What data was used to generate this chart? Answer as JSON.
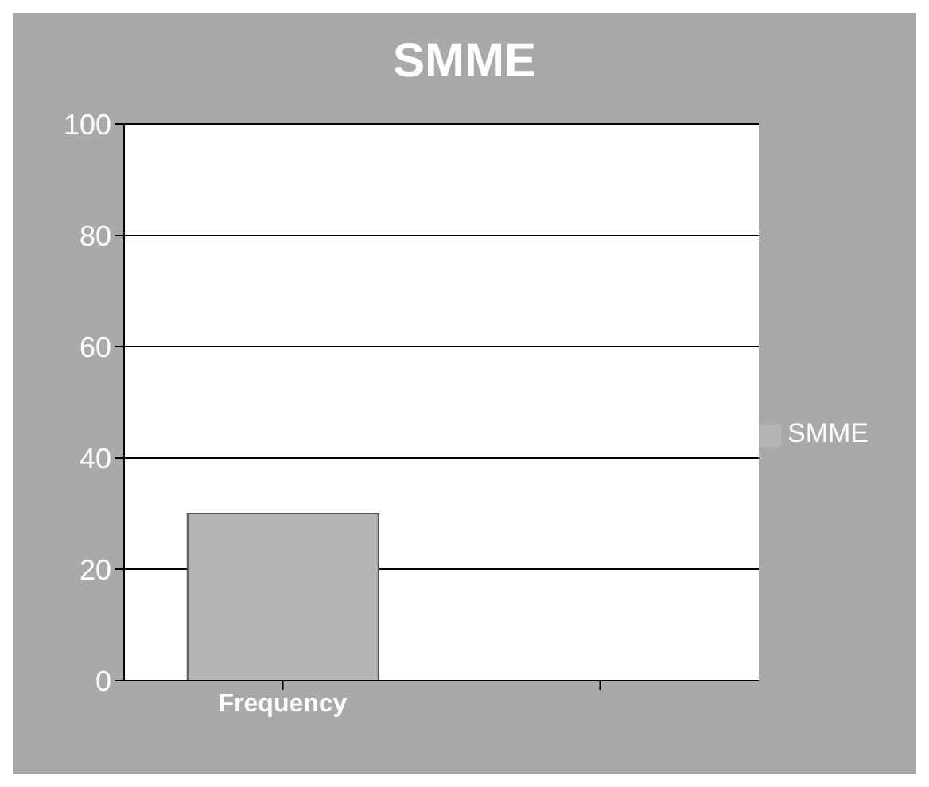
{
  "chart_data": {
    "type": "bar",
    "title": "SMME",
    "categories": [
      "Frequency",
      null
    ],
    "series": [
      {
        "name": "SMME",
        "color": "#b5b5b5",
        "values": [
          30,
          null
        ]
      }
    ],
    "ylim": [
      0,
      100
    ],
    "yticks": [
      0,
      20,
      40,
      60,
      80,
      100
    ],
    "grid": "y",
    "legend": "right"
  }
}
